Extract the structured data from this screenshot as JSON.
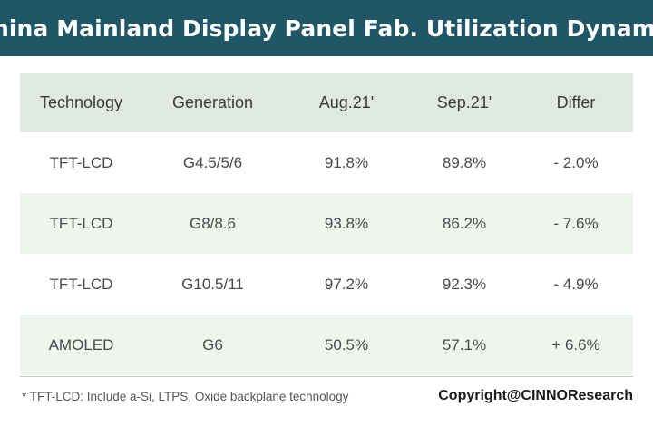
{
  "title": "China Mainland Display Panel Fab. Utilization Dynamic",
  "chart_data": {
    "type": "table",
    "columns": [
      "Technology",
      "Generation",
      "Aug.21'",
      "Sep.21'",
      "Differ"
    ],
    "rows": [
      {
        "technology": "TFT-LCD",
        "generation": "G4.5/5/6",
        "aug": "91.8%",
        "sep": "89.8%",
        "differ": "- 2.0%"
      },
      {
        "technology": "TFT-LCD",
        "generation": "G8/8.6",
        "aug": "93.8%",
        "sep": "86.2%",
        "differ": "- 7.6%"
      },
      {
        "technology": "TFT-LCD",
        "generation": "G10.5/11",
        "aug": "97.2%",
        "sep": "92.3%",
        "differ": "- 4.9%"
      },
      {
        "technology": "AMOLED",
        "generation": "G6",
        "aug": "50.5%",
        "sep": "57.1%",
        "differ": "+ 6.6%"
      }
    ]
  },
  "footnote": "* TFT-LCD: Include a-Si, LTPS, Oxide backplane technology",
  "copyright": "Copyright@CINNOResearch",
  "colors": {
    "title_bar": "#1f5766",
    "header_row": "#dfe9df",
    "alt_row": "#eef4ee"
  }
}
